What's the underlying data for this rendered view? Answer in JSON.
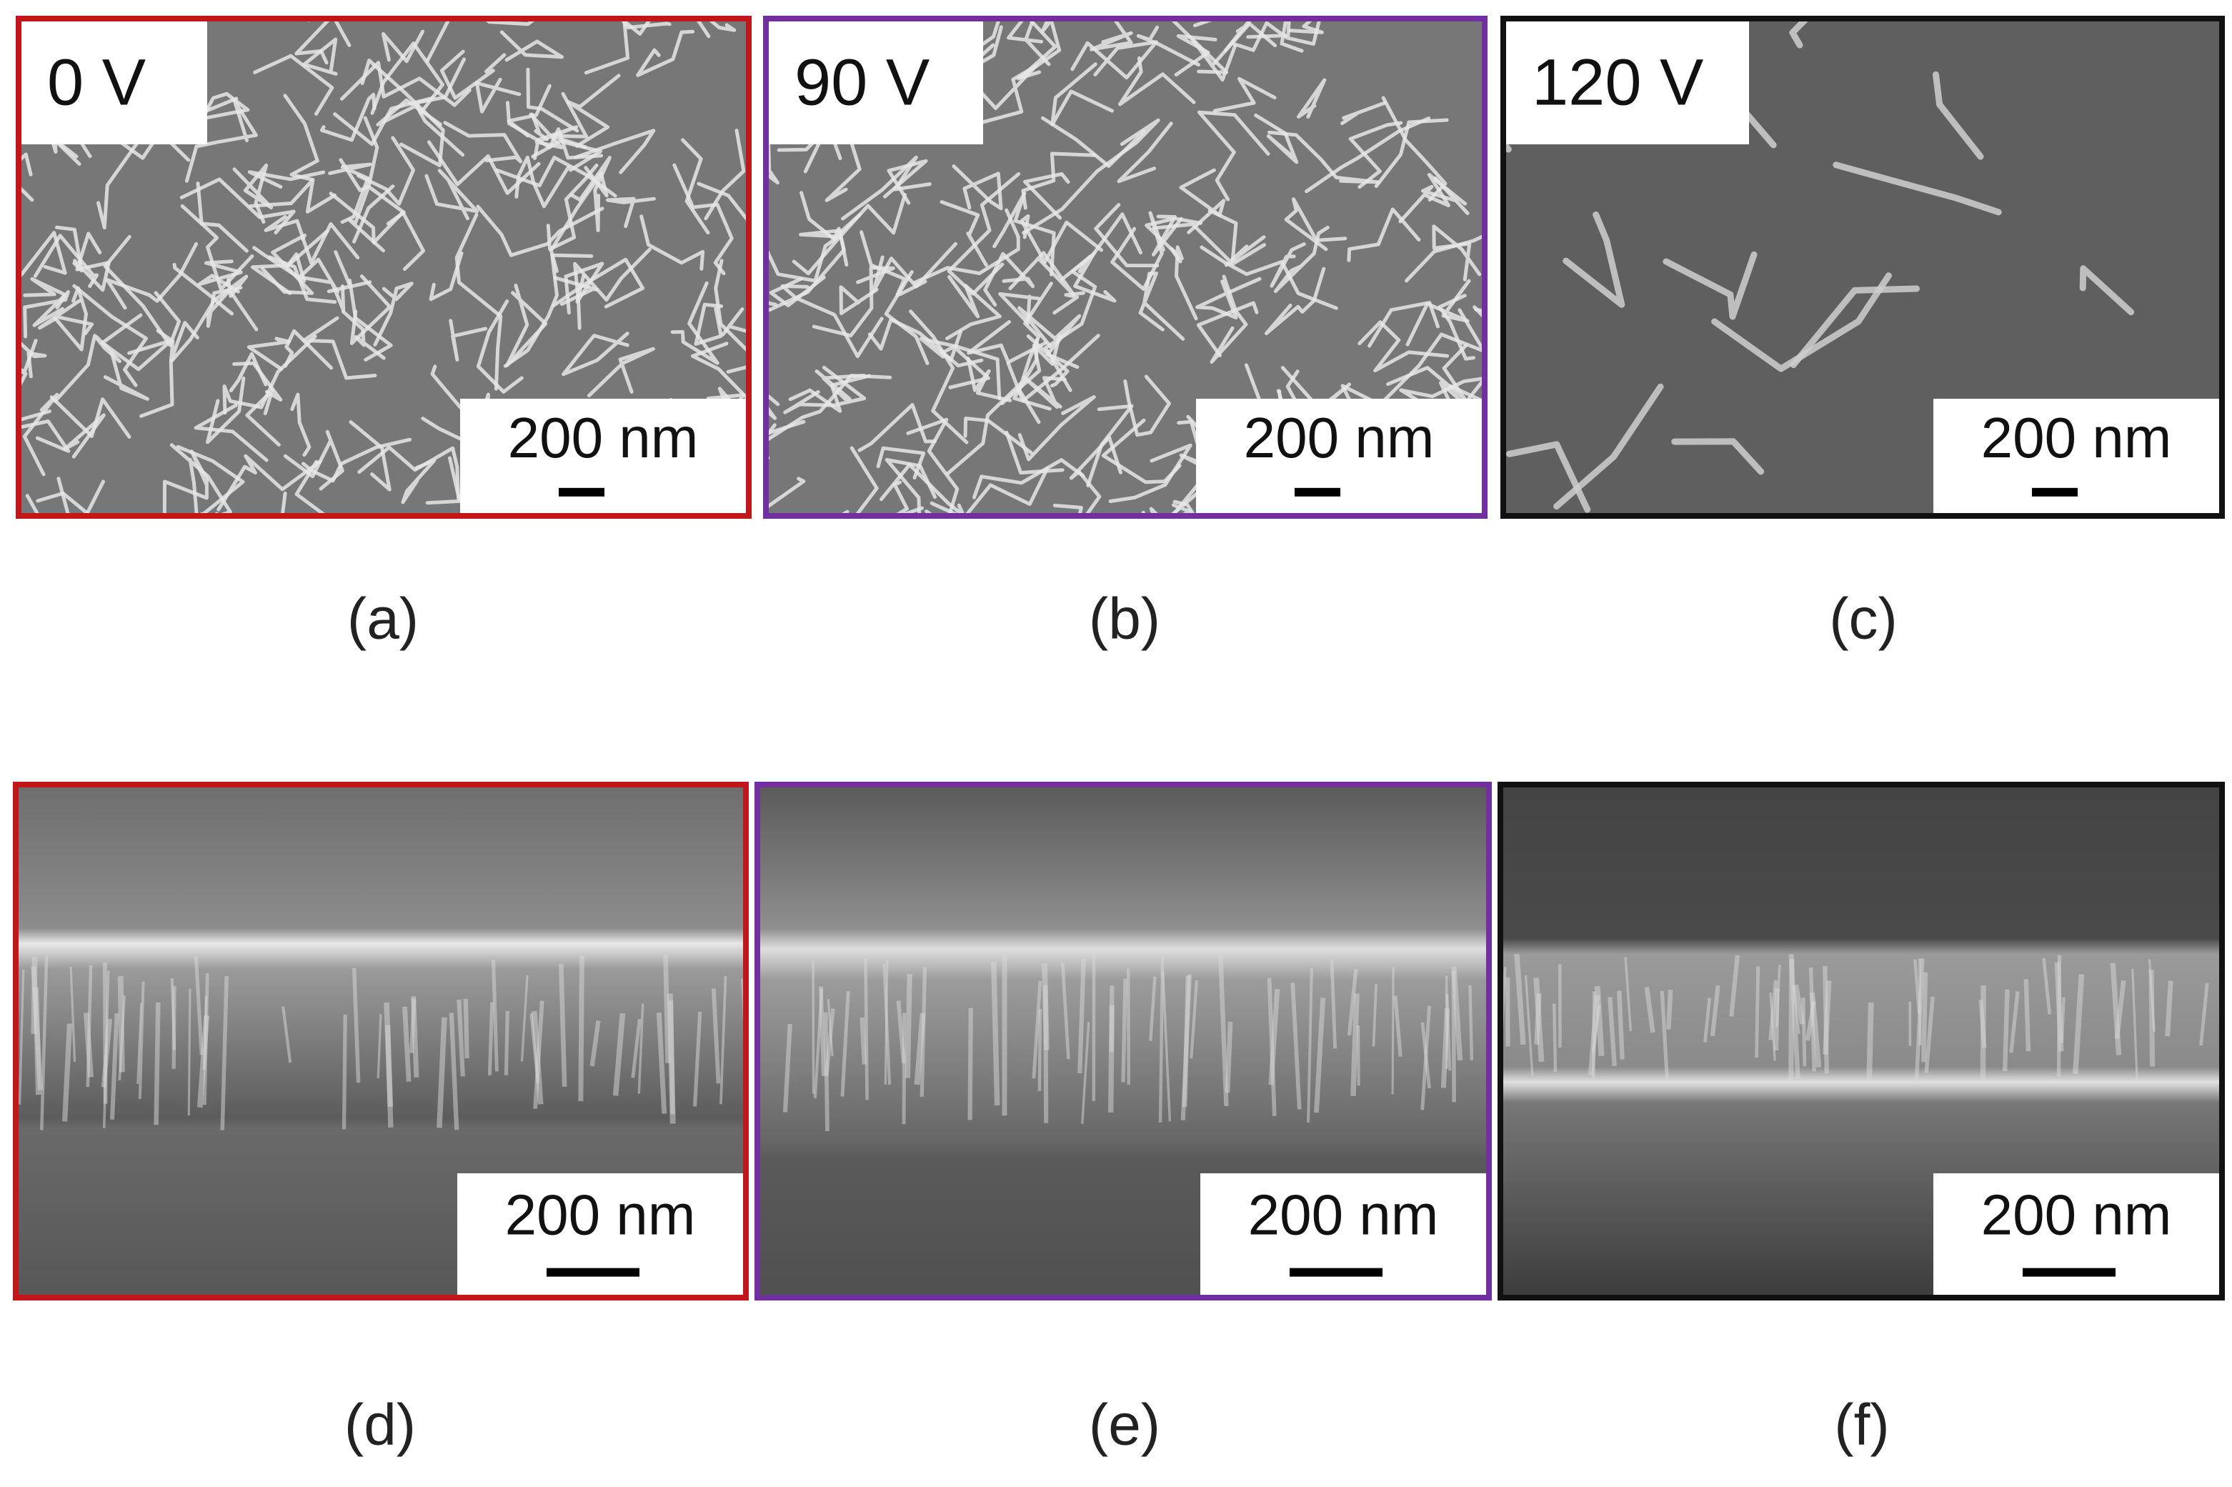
{
  "panels": [
    {
      "label": "0 V",
      "scale_bar": "200 nm",
      "caption": "(a)"
    },
    {
      "label": "90 V",
      "scale_bar": "200 nm",
      "caption": "(b)"
    },
    {
      "label": "120 V",
      "scale_bar": "200 nm",
      "caption": "(c)"
    },
    {
      "scale_bar": "200 nm",
      "caption": "(d)"
    },
    {
      "scale_bar": "200 nm",
      "caption": "(e)"
    },
    {
      "scale_bar": "200 nm",
      "caption": "(f)"
    }
  ]
}
